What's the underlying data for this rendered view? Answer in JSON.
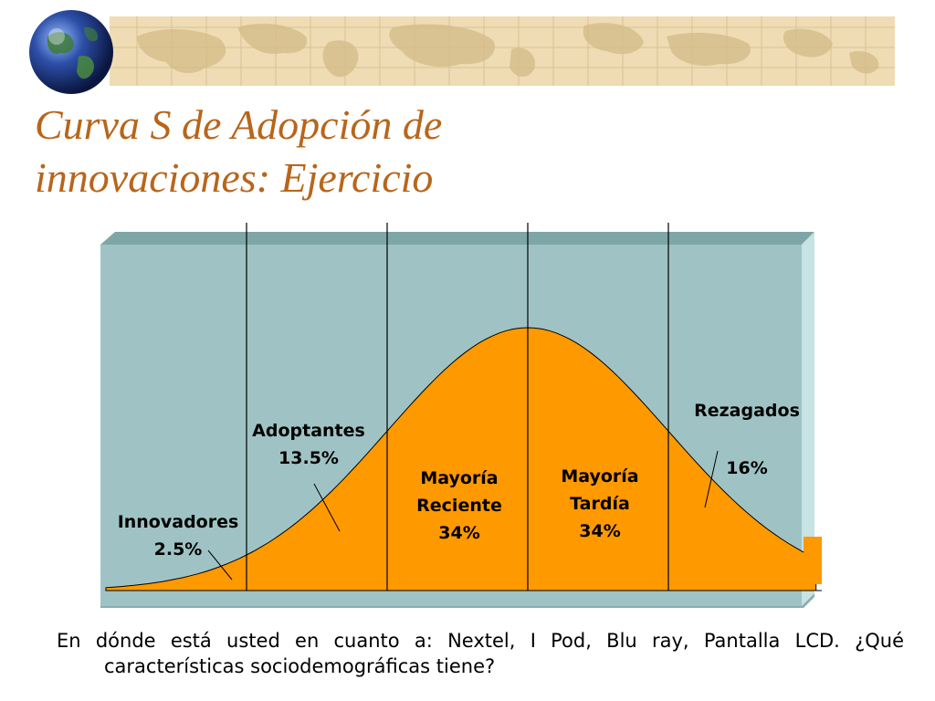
{
  "slide": {
    "title_line1": "Curva S de Adopción de",
    "title_line2": "innovaciones: Ejercicio",
    "question": "En dónde está usted en cuanto a: Nextel, I Pod, Blu ray, Pantalla LCD. ¿Qué características sociodemográficas tiene?"
  },
  "colors": {
    "title": "#b8651b",
    "panel": "#9fc3c4",
    "panel_side": "#c7e3e3",
    "curve_fill": "#ff9900",
    "banner": "#efdcb4",
    "globe": "#2d4fa8"
  },
  "icons": [
    "globe-icon",
    "world-map-banner"
  ],
  "chart_data": {
    "type": "area",
    "title": "",
    "xlabel": "",
    "ylabel": "",
    "segments": [
      {
        "label_lines": [
          "Innovadores",
          "2.5%"
        ],
        "share": 2.5
      },
      {
        "label_lines": [
          "Adoptantes",
          "13.5%"
        ],
        "share": 13.5
      },
      {
        "label_lines": [
          "Mayoría",
          "Reciente",
          "34%"
        ],
        "share": 34
      },
      {
        "label_lines": [
          "Mayoría",
          "Tardía",
          "34%"
        ],
        "share": 34
      },
      {
        "label_lines": [
          "Rezagados"
        ],
        "share_label": "16%",
        "share": 16
      }
    ],
    "curve": "normal",
    "boundaries_sd": [
      -2,
      -1,
      0,
      1
    ],
    "x_range_sd": [
      -3,
      2.05
    ]
  }
}
